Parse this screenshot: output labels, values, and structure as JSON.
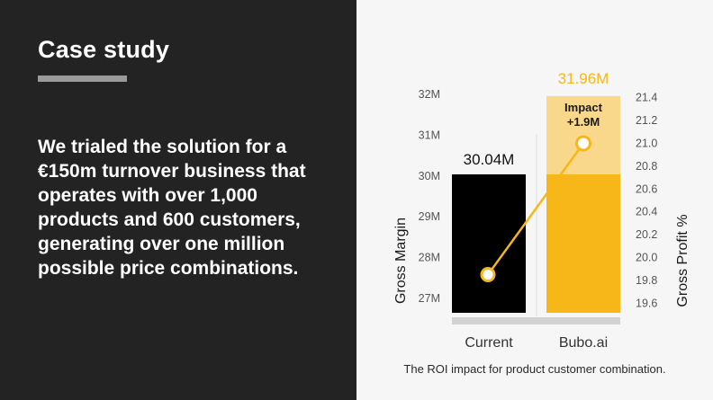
{
  "case_study": {
    "title": "Case study",
    "body": "We trialed the solution for a €150m turnover business that operates with over 1,000 products and 600 customers, generating over one million possible price combinations."
  },
  "colors": {
    "dark_panel": "#232323",
    "current_bar": "#000000",
    "bubo_bar": "#f7b718",
    "impact_band": "#f9d88b",
    "accent_line": "#f7b718"
  },
  "chart_data": {
    "type": "bar",
    "categories": [
      "Current",
      "Bubo.ai"
    ],
    "values": [
      30.04,
      31.96
    ],
    "value_labels": [
      "30.04M",
      "31.96M"
    ],
    "impact": {
      "label_line1": "Impact",
      "label_line2": "+1.9M",
      "from": 30.04,
      "to": 31.96
    },
    "ylabel": "Gross Margin",
    "ylim": [
      26.6,
      32.2
    ],
    "yticks": [
      27,
      28,
      29,
      30,
      31,
      32
    ],
    "ytick_labels": [
      "27M",
      "28M",
      "29M",
      "30M",
      "31M",
      "32M"
    ],
    "y2label": "Gross Profit %",
    "y2lim": [
      19.5,
      21.5
    ],
    "y2ticks": [
      19.6,
      19.8,
      20.0,
      20.2,
      20.4,
      20.6,
      20.8,
      21.0,
      21.2,
      21.4
    ],
    "y2tick_labels": [
      "19.6",
      "19.8",
      "20.0",
      "20.2",
      "20.4",
      "20.6",
      "20.8",
      "21.0",
      "21.2",
      "21.4"
    ],
    "line_series": {
      "values": [
        19.85,
        21.0
      ]
    },
    "caption": "The ROI impact for product customer combination."
  }
}
